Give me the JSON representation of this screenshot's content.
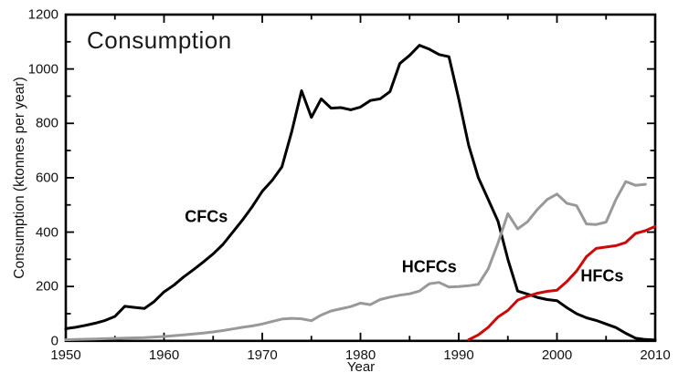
{
  "figure": {
    "title": "Consumption",
    "background": "#ffffff",
    "frame_color": "#000000"
  },
  "chart_data": {
    "type": "line",
    "title": "Consumption",
    "xlabel": "Year",
    "ylabel": "Consumption (ktonnes per year)",
    "xlim": [
      1950,
      2010
    ],
    "ylim": [
      0,
      1200
    ],
    "grid": false,
    "legend": "inline-labels",
    "x_major_step": 10,
    "x_minor_step": 5,
    "y_major_step": 200,
    "y_minor_step": 100,
    "x_tick_labels": [
      "1950",
      "1960",
      "1970",
      "1980",
      "1990",
      "2000",
      "2010"
    ],
    "y_tick_labels": [
      "0",
      "200",
      "400",
      "600",
      "800",
      "1000",
      "1200"
    ],
    "series": [
      {
        "name": "CFCs",
        "color": "#000000",
        "x_start": 1950,
        "x_step": 1,
        "values": [
          45,
          50,
          57,
          65,
          75,
          90,
          127,
          123,
          119,
          145,
          180,
          205,
          235,
          262,
          290,
          320,
          355,
          400,
          445,
          495,
          550,
          590,
          640,
          770,
          920,
          822,
          890,
          856,
          858,
          850,
          860,
          884,
          890,
          917,
          1020,
          1050,
          1087,
          1073,
          1053,
          1045,
          890,
          720,
          600,
          520,
          440,
          300,
          183,
          172,
          160,
          152,
          148,
          122,
          100,
          85,
          75,
          62,
          49,
          28,
          10,
          5,
          3
        ]
      },
      {
        "name": "HCFCs",
        "color": "#999999",
        "x_start": 1950,
        "x_step": 1,
        "values": [
          4,
          5,
          6,
          7,
          8,
          9,
          10,
          11,
          12,
          14,
          16,
          19,
          22,
          25,
          29,
          33,
          38,
          44,
          50,
          55,
          62,
          71,
          80,
          83,
          81,
          74,
          95,
          110,
          118,
          126,
          139,
          133,
          152,
          161,
          168,
          173,
          183,
          210,
          215,
          198,
          200,
          203,
          208,
          265,
          360,
          468,
          412,
          438,
          483,
          520,
          540,
          506,
          497,
          430,
          428,
          437,
          520,
          586,
          572,
          576
        ]
      },
      {
        "name": "HFCs",
        "color": "#cc0a0a",
        "x_start": 1991,
        "x_step": 1,
        "values": [
          4,
          22,
          50,
          88,
          112,
          150,
          164,
          175,
          182,
          186,
          218,
          257,
          310,
          340,
          345,
          350,
          362,
          395,
          405,
          421
        ]
      }
    ],
    "series_labels": [
      {
        "text": "CFCs",
        "x": 1964.3,
        "y": 455,
        "color": "#000000"
      },
      {
        "text": "HCFCs",
        "x": 1987.0,
        "y": 272,
        "color": "#000000"
      },
      {
        "text": "HFCs",
        "x": 2004.6,
        "y": 238,
        "color": "#000000"
      }
    ]
  }
}
